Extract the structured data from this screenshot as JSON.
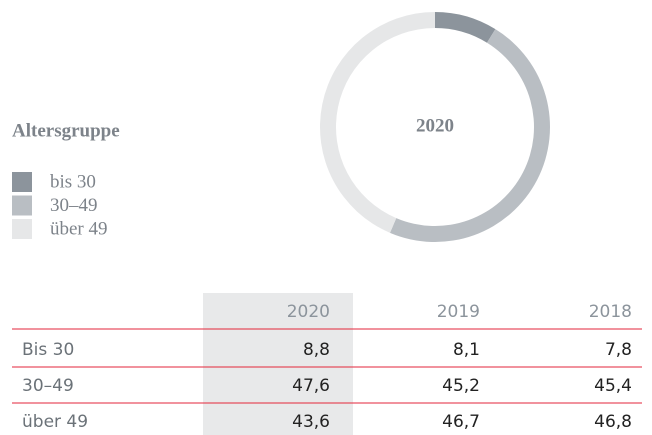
{
  "chart_data": {
    "type": "donut",
    "center_label": "2020",
    "legend_title": "Altersgruppe",
    "categories": [
      "bis 30",
      "30–49",
      "über 49"
    ],
    "values": [
      8.8,
      47.6,
      43.6
    ],
    "colors": [
      "#8c949c",
      "#b9bec3",
      "#e6e7e8"
    ]
  },
  "table": {
    "header": [
      "2020",
      "2019",
      "2018"
    ],
    "rows": [
      [
        "Bis 30",
        "8,8",
        "8,1",
        "7,8"
      ],
      [
        "30–49",
        "47,6",
        "45,2",
        "45,4"
      ],
      [
        "über 49",
        "43,6",
        "46,7",
        "46,8"
      ]
    ]
  }
}
